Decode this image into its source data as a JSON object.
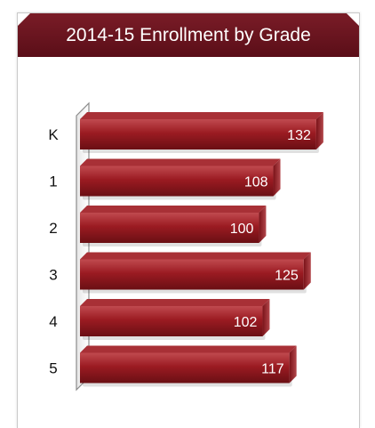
{
  "chart_data": {
    "type": "bar",
    "orientation": "horizontal",
    "title": "2014-15 Enrollment by Grade",
    "categories": [
      "K",
      "1",
      "2",
      "3",
      "4",
      "5"
    ],
    "values": [
      132,
      108,
      100,
      125,
      102,
      117
    ],
    "data_labels": [
      "132",
      "108",
      "100",
      "125",
      "102",
      "117"
    ],
    "xlim": [
      0,
      140
    ],
    "grid": false,
    "legend": "none"
  },
  "colors": {
    "header": "#6b1420",
    "bar": "#9b1b22",
    "bar_light": "#c04a4f",
    "bar_dark": "#6a0f14"
  }
}
